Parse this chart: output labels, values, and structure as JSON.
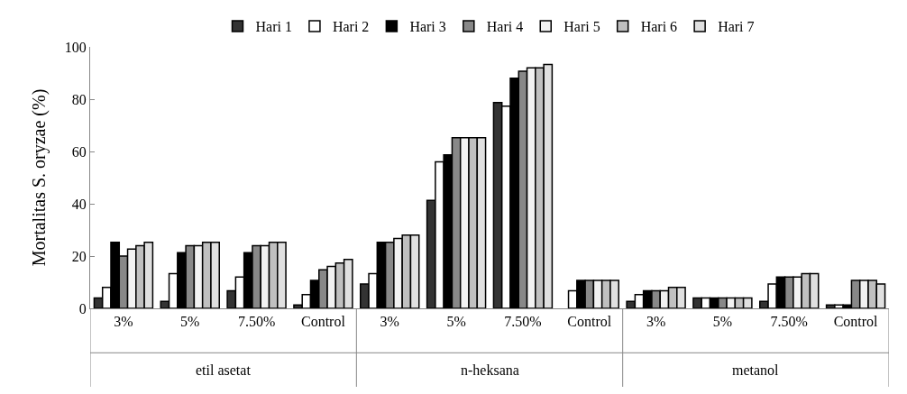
{
  "chart_data": {
    "type": "bar",
    "ylabel": "Mortalitas S. oryzae (%)",
    "categories": [
      "3%",
      "5%",
      "7.50%",
      "Control",
      "3%",
      "5%",
      "7.50%",
      "Control",
      "3%",
      "5%",
      "7.50%",
      "Control"
    ],
    "annotations": [
      "etil asetat",
      "n-heksana",
      "metanol"
    ],
    "series": [
      {
        "name": "Hari 1",
        "color": "#333333",
        "values": [
          4,
          2.7,
          6.7,
          1.3,
          9.3,
          41.3,
          78.7,
          0,
          2.7,
          4,
          2.7,
          1.3
        ]
      },
      {
        "name": "Hari 2",
        "color": "#ffffff",
        "values": [
          8,
          13.3,
          12,
          5.3,
          13.3,
          56,
          77.3,
          6.7,
          5.3,
          4,
          9.3,
          1.3
        ]
      },
      {
        "name": "Hari 3",
        "color": "#000000",
        "values": [
          25.3,
          21.3,
          21.3,
          10.7,
          25.3,
          58.7,
          88,
          10.7,
          6.7,
          4,
          12,
          1.3
        ]
      },
      {
        "name": "Hari 4",
        "color": "#888888",
        "values": [
          20,
          24,
          24,
          14.7,
          25.3,
          65.3,
          90.7,
          10.7,
          6.7,
          4,
          12,
          10.7
        ]
      },
      {
        "name": "Hari 5",
        "color": "#f2f2f2",
        "values": [
          22.7,
          24,
          24,
          16,
          26.7,
          65.3,
          92,
          10.7,
          6.7,
          4,
          12,
          10.7
        ]
      },
      {
        "name": "Hari 6",
        "color": "#c0c0c0",
        "values": [
          24,
          25.3,
          25.3,
          17.3,
          28,
          65.3,
          92,
          10.7,
          8,
          4,
          13.3,
          10.7
        ]
      },
      {
        "name": "Hari 7",
        "color": "#e0e0e0",
        "values": [
          25.3,
          25.3,
          25.3,
          18.7,
          28,
          65.3,
          93.3,
          10.7,
          8,
          4,
          13.3,
          9.3
        ]
      }
    ],
    "ylim": [
      0,
      100
    ],
    "yticks": [
      0,
      20,
      40,
      60,
      80,
      100
    ],
    "grid": false,
    "legend": "top"
  }
}
